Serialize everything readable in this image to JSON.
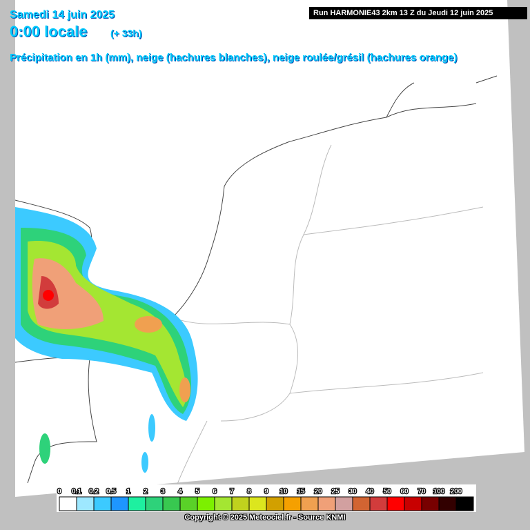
{
  "header": {
    "date": "Samedi 14 juin 2025",
    "time": "0:00 locale",
    "lead": "(+ 33h)",
    "description": "Précipitation en 1h (mm), neige (hachures blanches), neige roulée/grésil (hachures orange)",
    "run": "Run HARMONIE43 2km 13 Z du Jeudi 12 juin 2025"
  },
  "legend": {
    "levels": [
      {
        "label": 0,
        "color": "#ffffff"
      },
      {
        "label": 0.1,
        "color": "#9ee8ff"
      },
      {
        "label": 0.2,
        "color": "#3ccaff"
      },
      {
        "label": 0.5,
        "color": "#1e96ff"
      },
      {
        "label": 1,
        "color": "#1ef0a0"
      },
      {
        "label": 2,
        "color": "#2ed27a"
      },
      {
        "label": 3,
        "color": "#38c850"
      },
      {
        "label": 4,
        "color": "#5ad228"
      },
      {
        "label": 5,
        "color": "#7cf000"
      },
      {
        "label": 6,
        "color": "#a4e632"
      },
      {
        "label": 7,
        "color": "#c0d21e"
      },
      {
        "label": 8,
        "color": "#dce61e"
      },
      {
        "label": 9,
        "color": "#d2a000"
      },
      {
        "label": 10,
        "color": "#f5a000"
      },
      {
        "label": 15,
        "color": "#f0a050"
      },
      {
        "label": 20,
        "color": "#f0a078"
      },
      {
        "label": 25,
        "color": "#d2a0a0"
      },
      {
        "label": 30,
        "color": "#d26432"
      },
      {
        "label": 40,
        "color": "#d23c3c"
      },
      {
        "label": 50,
        "color": "#ff0000"
      },
      {
        "label": 60,
        "color": "#c80000"
      },
      {
        "label": 70,
        "color": "#780000"
      },
      {
        "label": 100,
        "color": "#320000"
      },
      {
        "label": 200,
        "color": "#000000"
      }
    ],
    "extra_color": "#3c0050",
    "last_color": "#8c0096"
  },
  "footer": {
    "copyright": "Copyright © 2025 Meteociel.fr - Source KNMI"
  }
}
